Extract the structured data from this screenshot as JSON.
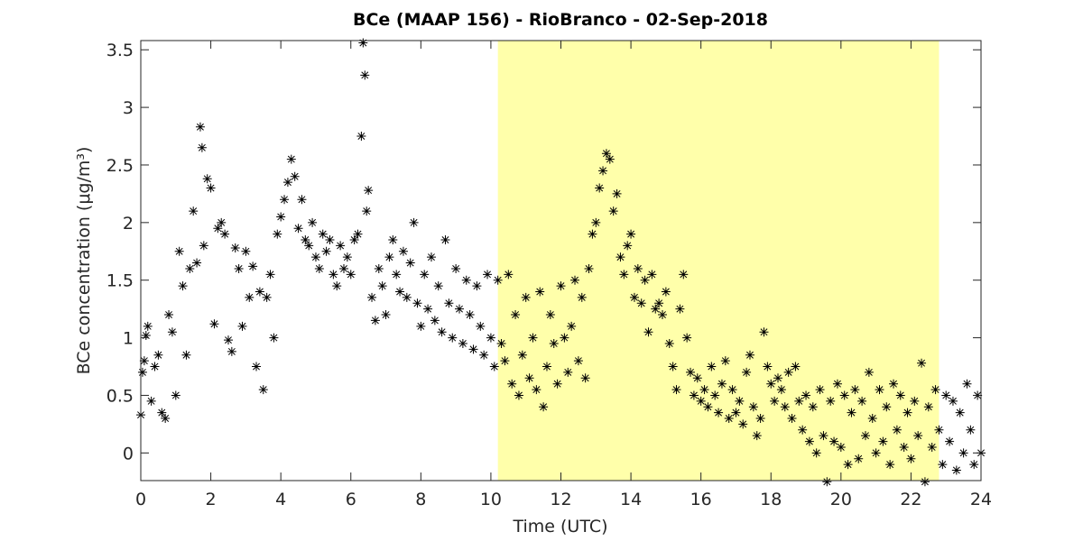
{
  "chart_data": {
    "type": "scatter",
    "title": "BCe (MAAP 156) - RioBranco - 02-Sep-2018",
    "xlabel": "Time (UTC)",
    "ylabel": "BCe concentration (μg/m³)",
    "highlight_x": [
      10.2,
      22.8
    ],
    "highlight_color": "#ffffaa",
    "xlim": [
      0,
      24
    ],
    "xticks": [
      0,
      2,
      4,
      6,
      8,
      10,
      12,
      14,
      16,
      18,
      20,
      22,
      24
    ],
    "ylim": [
      -0.24,
      3.58
    ],
    "yticks": [
      0,
      0.5,
      1,
      1.5,
      2,
      2.5,
      3,
      3.5
    ],
    "series": [
      {
        "color": "#000000",
        "x": [
          0.0,
          0.05,
          0.1,
          0.15,
          0.2,
          0.3,
          0.4,
          0.5,
          0.6,
          0.7,
          0.8,
          0.9,
          1.0,
          1.1,
          1.2,
          1.3,
          1.4,
          1.5,
          1.6,
          1.7,
          1.75,
          1.8,
          1.9,
          2.0,
          2.1,
          2.2,
          2.3,
          2.4,
          2.5,
          2.6,
          2.7,
          2.8,
          2.9,
          3.0,
          3.1,
          3.2,
          3.3,
          3.4,
          3.5,
          3.6,
          3.7,
          3.8,
          3.9,
          4.0,
          4.1,
          4.2,
          4.3,
          4.4,
          4.5,
          4.6,
          4.7,
          4.8,
          4.9,
          5.0,
          5.1,
          5.2,
          5.3,
          5.4,
          5.5,
          5.6,
          5.7,
          5.8,
          5.9,
          6.0,
          6.1,
          6.2,
          6.3,
          6.35,
          6.4,
          6.45,
          6.5,
          6.6,
          6.7,
          6.8,
          6.9,
          7.0,
          7.1,
          7.2,
          7.3,
          7.4,
          7.5,
          7.6,
          7.7,
          7.8,
          7.9,
          8.0,
          8.1,
          8.2,
          8.3,
          8.4,
          8.5,
          8.6,
          8.7,
          8.8,
          8.9,
          9.0,
          9.1,
          9.2,
          9.3,
          9.4,
          9.5,
          9.6,
          9.7,
          9.8,
          9.9,
          10.0,
          10.1,
          10.2,
          10.3,
          10.4,
          10.5,
          10.6,
          10.7,
          10.8,
          10.9,
          11.0,
          11.1,
          11.2,
          11.3,
          11.4,
          11.5,
          11.6,
          11.7,
          11.8,
          11.9,
          12.0,
          12.1,
          12.2,
          12.3,
          12.4,
          12.5,
          12.6,
          12.7,
          12.8,
          12.9,
          13.0,
          13.1,
          13.2,
          13.3,
          13.4,
          13.5,
          13.6,
          13.7,
          13.8,
          13.9,
          14.0,
          14.1,
          14.2,
          14.3,
          14.4,
          14.5,
          14.6,
          14.7,
          14.8,
          14.9,
          15.0,
          15.1,
          15.2,
          15.3,
          15.4,
          15.5,
          15.6,
          15.7,
          15.8,
          15.9,
          16.0,
          16.1,
          16.2,
          16.3,
          16.4,
          16.5,
          16.6,
          16.7,
          16.8,
          16.9,
          17.0,
          17.1,
          17.2,
          17.3,
          17.4,
          17.5,
          17.6,
          17.7,
          17.8,
          17.9,
          18.0,
          18.1,
          18.2,
          18.3,
          18.4,
          18.5,
          18.6,
          18.7,
          18.8,
          18.9,
          19.0,
          19.1,
          19.2,
          19.3,
          19.4,
          19.5,
          19.6,
          19.7,
          19.8,
          19.9,
          20.0,
          20.1,
          20.2,
          20.3,
          20.4,
          20.5,
          20.6,
          20.7,
          20.8,
          20.9,
          21.0,
          21.1,
          21.2,
          21.3,
          21.4,
          21.5,
          21.6,
          21.7,
          21.8,
          21.9,
          22.0,
          22.1,
          22.2,
          22.3,
          22.4,
          22.5,
          22.6,
          22.7,
          22.8,
          22.9,
          23.0,
          23.1,
          23.2,
          23.3,
          23.4,
          23.5,
          23.6,
          23.7,
          23.8,
          23.9,
          24.0
        ],
        "values": [
          0.33,
          0.7,
          0.8,
          1.02,
          1.1,
          0.45,
          0.75,
          0.85,
          0.35,
          0.3,
          1.2,
          1.05,
          0.5,
          1.75,
          1.45,
          0.85,
          1.6,
          2.1,
          1.65,
          2.83,
          2.65,
          1.8,
          2.38,
          2.3,
          1.12,
          1.95,
          2.0,
          1.9,
          0.98,
          0.88,
          1.78,
          1.6,
          1.1,
          1.75,
          1.35,
          1.62,
          0.75,
          1.4,
          0.55,
          1.35,
          1.55,
          1.0,
          1.9,
          2.05,
          2.2,
          2.35,
          2.55,
          2.4,
          1.95,
          2.2,
          1.85,
          1.8,
          2.0,
          1.7,
          1.6,
          1.9,
          1.75,
          1.85,
          1.55,
          1.45,
          1.8,
          1.6,
          1.7,
          1.55,
          1.85,
          1.9,
          2.75,
          3.56,
          3.28,
          2.1,
          2.28,
          1.35,
          1.15,
          1.6,
          1.45,
          1.2,
          1.7,
          1.85,
          1.55,
          1.4,
          1.75,
          1.35,
          1.65,
          2.0,
          1.3,
          1.1,
          1.55,
          1.25,
          1.7,
          1.15,
          1.45,
          1.05,
          1.85,
          1.3,
          1.0,
          1.6,
          1.25,
          0.95,
          1.5,
          1.2,
          0.9,
          1.45,
          1.1,
          0.85,
          1.55,
          1.0,
          0.75,
          1.5,
          0.95,
          0.8,
          1.55,
          0.6,
          1.2,
          0.5,
          0.85,
          1.35,
          0.65,
          1.0,
          0.55,
          1.4,
          0.4,
          0.75,
          1.2,
          0.95,
          0.6,
          1.45,
          1.0,
          0.7,
          1.1,
          1.5,
          0.8,
          1.35,
          0.65,
          1.6,
          1.9,
          2.0,
          2.3,
          2.45,
          2.6,
          2.55,
          2.1,
          2.25,
          1.7,
          1.55,
          1.8,
          1.9,
          1.35,
          1.6,
          1.3,
          1.5,
          1.05,
          1.55,
          1.25,
          1.3,
          1.2,
          1.4,
          0.95,
          0.75,
          0.55,
          1.25,
          1.55,
          1.0,
          0.7,
          0.5,
          0.65,
          0.45,
          0.55,
          0.4,
          0.75,
          0.5,
          0.35,
          0.6,
          0.8,
          0.3,
          0.55,
          0.35,
          0.45,
          0.25,
          0.7,
          0.85,
          0.4,
          0.15,
          0.3,
          1.05,
          0.75,
          0.6,
          0.45,
          0.65,
          0.55,
          0.4,
          0.7,
          0.3,
          0.75,
          0.45,
          0.2,
          0.5,
          0.1,
          0.4,
          0.0,
          0.55,
          0.15,
          -0.25,
          0.45,
          0.1,
          0.6,
          0.05,
          0.5,
          -0.1,
          0.35,
          0.55,
          -0.05,
          0.45,
          0.15,
          0.7,
          0.3,
          0.0,
          0.55,
          0.1,
          0.4,
          -0.1,
          0.6,
          0.2,
          0.5,
          0.05,
          0.35,
          -0.05,
          0.45,
          0.15,
          0.78,
          -0.25,
          0.4,
          0.05,
          0.55,
          0.2,
          -0.1,
          0.5,
          0.1,
          0.45,
          -0.15,
          0.35,
          0.0,
          0.6,
          0.2,
          -0.1,
          0.5,
          0.0
        ]
      }
    ]
  }
}
